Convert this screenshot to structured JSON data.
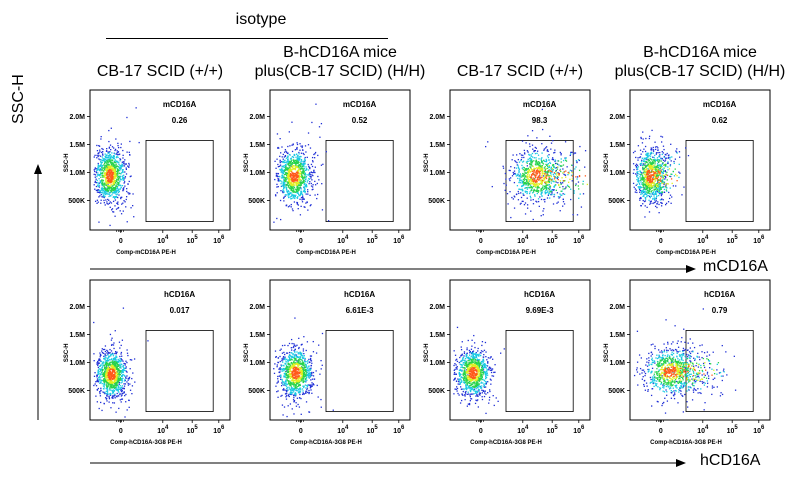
{
  "header": {
    "isotype_label": "isotype",
    "columns": [
      {
        "line1": "",
        "line2": "CB-17 SCID (+/+)"
      },
      {
        "line1": "B-hCD16A mice",
        "line2": "plus(CB-17 SCID)  (H/H)"
      },
      {
        "line1": "",
        "line2": "CB-17 SCID (+/+)"
      },
      {
        "line1": "B-hCD16A mice",
        "line2": "plus(CB-17 SCID)  (H/H)"
      }
    ]
  },
  "axes": {
    "y_label": "SSC-H",
    "x_label_top": "mCD16A",
    "x_label_bottom": "hCD16A"
  },
  "colors": {
    "low": "#1f2fd6",
    "mid": "#19c9e3",
    "high": "#27d34b",
    "peak": "#ff5a1a",
    "core": "#e0ef1f"
  },
  "chart_data": [
    {
      "type": "scatter",
      "row": 0,
      "col": 0,
      "gate_label": "mCD16A",
      "gate_value": "0.26",
      "xlabel": "Comp-mCD16A PE-H",
      "ylabel": "SSC-H",
      "y_ticks": [
        "2.0M",
        "1.5M",
        "1.0M",
        "500K"
      ],
      "x_ticks": [
        "0",
        "10 4",
        "10 5",
        "10 6"
      ],
      "cluster": {
        "cx": 0.14,
        "cy": 0.61,
        "rx": 0.1,
        "ry": 0.17
      },
      "spread": 0.0
    },
    {
      "type": "scatter",
      "row": 0,
      "col": 1,
      "gate_label": "mCD16A",
      "gate_value": "0.52",
      "xlabel": "Comp-mCD16A PE-H",
      "ylabel": "SSC-H",
      "y_ticks": [
        "2.0M",
        "1.5M",
        "1.0M",
        "500K"
      ],
      "x_ticks": [
        "0",
        "10 4",
        "10 5",
        "10 6"
      ],
      "cluster": {
        "cx": 0.17,
        "cy": 0.61,
        "rx": 0.11,
        "ry": 0.17
      },
      "spread": 0.0
    },
    {
      "type": "scatter",
      "row": 0,
      "col": 2,
      "gate_label": "mCD16A",
      "gate_value": "98.3",
      "xlabel": "Comp-mCD16A PE-H",
      "ylabel": "SSC-H",
      "y_ticks": [
        "2.0M",
        "1.5M",
        "1.0M",
        "500K"
      ],
      "x_ticks": [
        "0",
        "10 4",
        "10 5",
        "10 6"
      ],
      "cluster": {
        "cx": 0.61,
        "cy": 0.61,
        "rx": 0.15,
        "ry": 0.17
      },
      "spread": 0.35
    },
    {
      "type": "scatter",
      "row": 0,
      "col": 3,
      "gate_label": "mCD16A",
      "gate_value": "0.62",
      "xlabel": "Comp-mCD16A PE-H",
      "ylabel": "SSC-H",
      "y_ticks": [
        "2.0M",
        "1.5M",
        "1.0M",
        "500K"
      ],
      "x_ticks": [
        "0",
        "10 4",
        "10 5",
        "10 6"
      ],
      "cluster": {
        "cx": 0.14,
        "cy": 0.61,
        "rx": 0.1,
        "ry": 0.18
      },
      "spread": 0.15
    },
    {
      "type": "scatter",
      "row": 1,
      "col": 0,
      "gate_label": "hCD16A",
      "gate_value": "0.017",
      "xlabel": "Comp-hCD16A-3G8 PE-H",
      "ylabel": "SSC-H",
      "y_ticks": [
        "2.0M",
        "1.5M",
        "1.0M",
        "500K"
      ],
      "x_ticks": [
        "0",
        "10 4",
        "10 5",
        "10 6"
      ],
      "cluster": {
        "cx": 0.15,
        "cy": 0.67,
        "rx": 0.1,
        "ry": 0.15
      },
      "spread": 0.0
    },
    {
      "type": "scatter",
      "row": 1,
      "col": 1,
      "gate_label": "hCD16A",
      "gate_value": "6.61E-3",
      "xlabel": "Comp-hCD16A-3G8 PE-H",
      "ylabel": "SSC-H",
      "y_ticks": [
        "2.0M",
        "1.5M",
        "1.0M",
        "500K"
      ],
      "x_ticks": [
        "0",
        "10 4",
        "10 5",
        "10 6"
      ],
      "cluster": {
        "cx": 0.18,
        "cy": 0.66,
        "rx": 0.11,
        "ry": 0.16
      },
      "spread": 0.0
    },
    {
      "type": "scatter",
      "row": 1,
      "col": 2,
      "gate_label": "hCD16A",
      "gate_value": "9.69E-3",
      "xlabel": "Comp-hCD16A-3G8 PE-H",
      "ylabel": "SSC-H",
      "y_ticks": [
        "2.0M",
        "1.5M",
        "1.0M",
        "500K"
      ],
      "x_ticks": [
        "0",
        "10 4",
        "10 5",
        "10 6"
      ],
      "cluster": {
        "cx": 0.16,
        "cy": 0.66,
        "rx": 0.11,
        "ry": 0.15
      },
      "spread": 0.0
    },
    {
      "type": "scatter",
      "row": 1,
      "col": 3,
      "gate_label": "hCD16A",
      "gate_value": "0.79",
      "xlabel": "Comp-hCD16A-3G8 PE-H",
      "ylabel": "SSC-H",
      "y_ticks": [
        "2.0M",
        "1.5M",
        "1.0M",
        "500K"
      ],
      "x_ticks": [
        "0",
        "10 4",
        "10 5",
        "10 6"
      ],
      "cluster": {
        "cx": 0.28,
        "cy": 0.65,
        "rx": 0.17,
        "ry": 0.15
      },
      "spread": 0.25
    }
  ]
}
